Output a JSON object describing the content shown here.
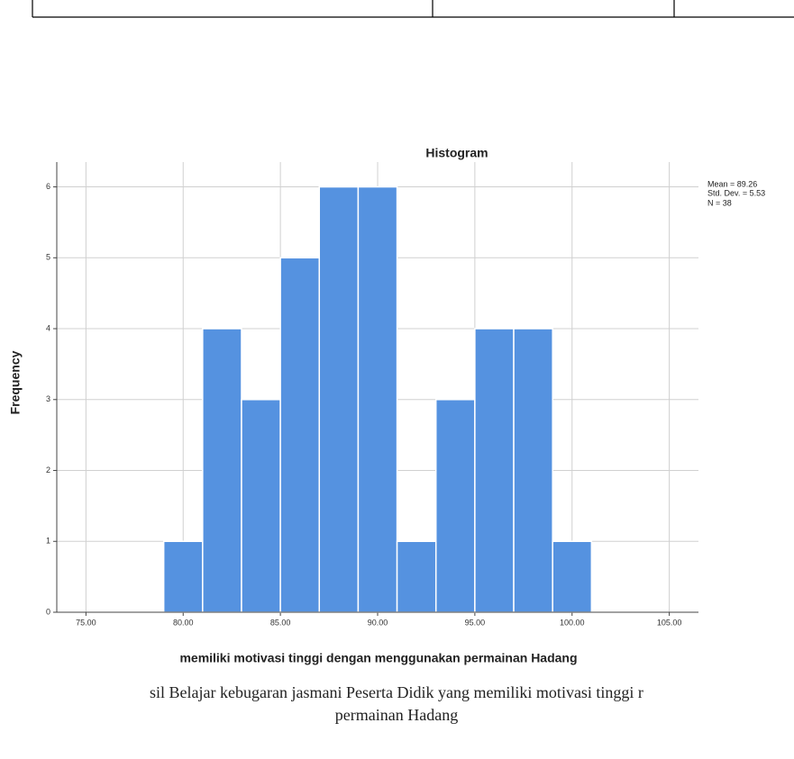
{
  "chart_data": {
    "type": "histogram",
    "title": "Histogram",
    "x_label": "memiliki motivasi tinggi dengan menggunakan permainan Hadang",
    "y_label": "Frequency",
    "bins": [
      79,
      81,
      83,
      85,
      87,
      89,
      91,
      93,
      95,
      97,
      99,
      101
    ],
    "counts": [
      1,
      4,
      3,
      5,
      6,
      6,
      1,
      3,
      4,
      4,
      1
    ],
    "color": "#5592e0",
    "xlim": [
      73.5,
      106.5
    ],
    "xticks": [
      {
        "value": 75,
        "label": "75.00"
      },
      {
        "value": 80,
        "label": "80.00"
      },
      {
        "value": 85,
        "label": "85.00"
      },
      {
        "value": 90,
        "label": "90.00"
      },
      {
        "value": 95,
        "label": "95.00"
      },
      {
        "value": 100,
        "label": "100.00"
      },
      {
        "value": 105,
        "label": "105.00"
      }
    ],
    "ylim": [
      0,
      6.35
    ],
    "yticks": [
      0,
      1,
      2,
      3,
      4,
      5,
      6
    ],
    "grid": true,
    "annotations": [
      "Mean = 89.26",
      "Std. Dev. = 5.53",
      "N = 38"
    ]
  },
  "caption": [
    "sil Belajar kebugaran jasmani Peserta Didik yang memiliki motivasi tinggi r",
    "permainan Hadang"
  ]
}
